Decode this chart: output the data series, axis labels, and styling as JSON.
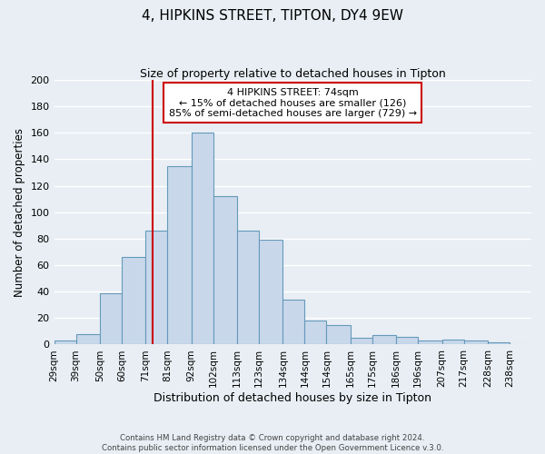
{
  "title": "4, HIPKINS STREET, TIPTON, DY4 9EW",
  "subtitle": "Size of property relative to detached houses in Tipton",
  "xlabel": "Distribution of detached houses by size in Tipton",
  "ylabel": "Number of detached properties",
  "bin_labels": [
    "29sqm",
    "39sqm",
    "50sqm",
    "60sqm",
    "71sqm",
    "81sqm",
    "92sqm",
    "102sqm",
    "113sqm",
    "123sqm",
    "134sqm",
    "144sqm",
    "154sqm",
    "165sqm",
    "175sqm",
    "186sqm",
    "196sqm",
    "207sqm",
    "217sqm",
    "228sqm",
    "238sqm"
  ],
  "bar_heights": [
    3,
    8,
    39,
    66,
    86,
    135,
    160,
    112,
    86,
    79,
    34,
    18,
    15,
    5,
    7,
    6,
    3,
    4,
    3,
    2,
    0
  ],
  "bar_color": "#c8d8ea",
  "bar_edge_color": "#6699bb",
  "vline_x": 74,
  "vline_color": "#cc0000",
  "ylim": [
    0,
    200
  ],
  "yticks": [
    0,
    20,
    40,
    60,
    80,
    100,
    120,
    140,
    160,
    180,
    200
  ],
  "annotation_title": "4 HIPKINS STREET: 74sqm",
  "annotation_line1": "← 15% of detached houses are smaller (126)",
  "annotation_line2": "85% of semi-detached houses are larger (729) →",
  "annotation_box_color": "#ffffff",
  "annotation_box_edge_color": "#cc0000",
  "footer_line1": "Contains HM Land Registry data © Crown copyright and database right 2024.",
  "footer_line2": "Contains public sector information licensed under the Open Government Licence v.3.0.",
  "bg_color": "#e8eef4",
  "grid_color": "#ffffff",
  "bin_edges": [
    29,
    39,
    50,
    60,
    71,
    81,
    92,
    102,
    113,
    123,
    134,
    144,
    154,
    165,
    175,
    186,
    196,
    207,
    217,
    228,
    238,
    248
  ]
}
